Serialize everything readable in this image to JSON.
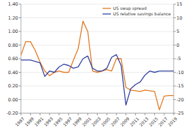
{
  "chart_data": {
    "type": "line",
    "x": [
      1987,
      1988,
      1989,
      1990,
      1991,
      1992,
      1993,
      1994,
      1995,
      1996,
      1997,
      1998,
      1999,
      2000,
      2001,
      2002,
      2003,
      2004,
      2005,
      2006,
      2007,
      2008,
      2009,
      2010,
      2011,
      2012,
      2013,
      2014,
      2015,
      2016,
      2017,
      2018,
      2019
    ],
    "series": [
      {
        "name": "US swap spread",
        "color": "#e07820",
        "axis": "y",
        "values": [
          0.65,
          0.85,
          0.85,
          0.72,
          0.55,
          0.42,
          0.35,
          0.4,
          0.42,
          0.4,
          0.4,
          0.58,
          0.75,
          1.15,
          1.0,
          0.42,
          0.4,
          0.42,
          0.44,
          0.42,
          0.6,
          0.6,
          0.18,
          0.14,
          0.13,
          0.12,
          0.14,
          0.13,
          0.12,
          -0.15,
          0.05,
          0.06,
          0.06
        ]
      },
      {
        "name": "US relative savings balance",
        "color": "#3040a0",
        "axis": "y2",
        "values": [
          -5.5,
          -5.5,
          -5.5,
          -6.0,
          -6.5,
          -11.5,
          -9.5,
          -10.0,
          -8.0,
          -7.0,
          -7.5,
          -8.5,
          -8.0,
          -5.0,
          -4.0,
          -8.5,
          -9.5,
          -9.5,
          -8.5,
          -4.5,
          -3.5,
          -7.5,
          -22.0,
          -16.0,
          -14.5,
          -13.5,
          -11.0,
          -9.5,
          -10.0,
          -9.5,
          -9.5,
          -9.5,
          -9.5
        ]
      }
    ],
    "xlim": [
      1987,
      2019
    ],
    "xticks": [
      1987,
      1989,
      1991,
      1993,
      1995,
      1997,
      1999,
      2001,
      2003,
      2005,
      2007,
      2009,
      2011,
      2013,
      2015,
      2017,
      2019
    ],
    "ylim": [
      -0.2,
      1.4
    ],
    "yticks": [
      {
        "value": -0.2,
        "label": "-0.20"
      },
      {
        "value": 0.0,
        "label": "0.00"
      },
      {
        "value": 0.2,
        "label": "0.20"
      },
      {
        "value": 0.4,
        "label": "0.40"
      },
      {
        "value": 0.6,
        "label": "0.60"
      },
      {
        "value": 0.8,
        "label": "0.80"
      },
      {
        "value": 1.0,
        "label": "1.00"
      },
      {
        "value": 1.2,
        "label": "1.20"
      },
      {
        "value": 1.4,
        "label": "1.40"
      }
    ],
    "y2lim": [
      -25,
      15
    ],
    "y2ticks": [
      -25,
      -20,
      -15,
      -10,
      -5,
      0,
      5,
      10,
      15
    ],
    "grid": true,
    "legend": "upper right"
  }
}
